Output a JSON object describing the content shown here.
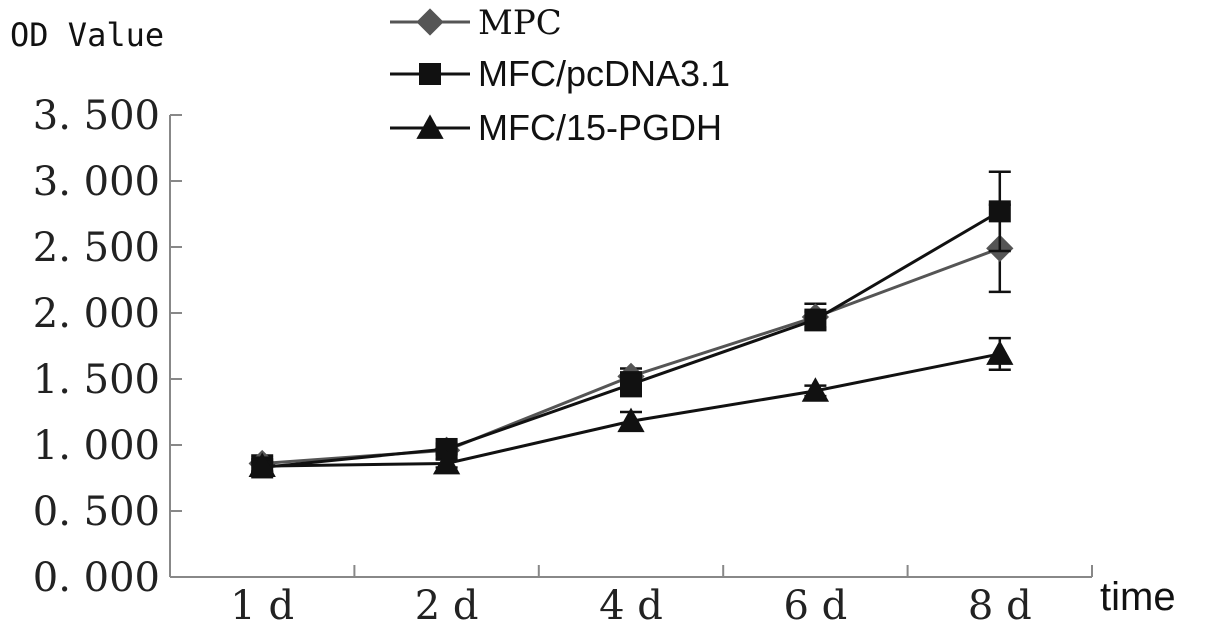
{
  "chart_data": {
    "type": "line",
    "title": "",
    "ylabel": "OD Value",
    "xlabel": "time",
    "categories": [
      "1 d",
      "2 d",
      "4 d",
      "6 d",
      "8 d"
    ],
    "ylim": [
      0,
      3.5
    ],
    "yticks": [
      0,
      0.5,
      1.0,
      1.5,
      2.0,
      2.5,
      3.0,
      3.5
    ],
    "ytick_labels": [
      "0. 000",
      "0. 500",
      "1. 000",
      "1. 500",
      "2. 000",
      "2. 500",
      "3. 000",
      "3. 500"
    ],
    "grid": false,
    "legend_position": "top-center",
    "series": [
      {
        "name": "MPC",
        "marker": "diamond",
        "color": "#555555",
        "values": [
          0.86,
          0.96,
          1.52,
          1.97,
          2.49
        ],
        "error": [
          0.06,
          0.03,
          0.06,
          0.1,
          0.33
        ]
      },
      {
        "name": "MFC/pcDNA3.1",
        "marker": "square",
        "color": "#111111",
        "values": [
          0.83,
          0.97,
          1.46,
          1.95,
          2.77
        ],
        "error": [
          0.04,
          0.04,
          0.09,
          0.06,
          0.3
        ]
      },
      {
        "name": "MFC/15-PGDH",
        "marker": "triangle",
        "color": "#111111",
        "values": [
          0.84,
          0.86,
          1.18,
          1.41,
          1.69
        ],
        "error": [
          0.05,
          0.03,
          0.07,
          0.04,
          0.12
        ]
      }
    ]
  }
}
